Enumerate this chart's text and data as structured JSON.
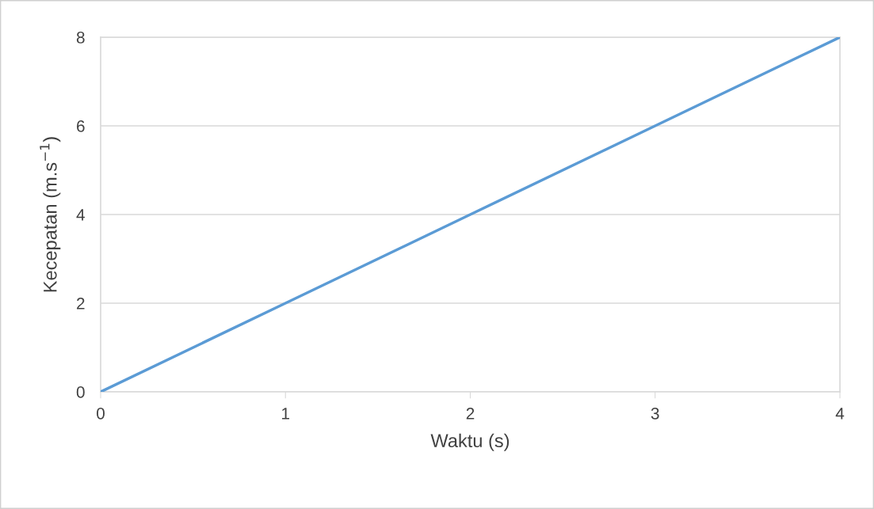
{
  "chart_data": {
    "type": "line",
    "xlabel": "Waktu (s)",
    "ylabel": "Kecepatan (m.s$^{−1}$)",
    "x": [
      0,
      1,
      2,
      3,
      4
    ],
    "series": [
      {
        "color": "#5b9bd5",
        "values": [
          0,
          2,
          4,
          6,
          8
        ]
      }
    ],
    "xlim": [
      0,
      4
    ],
    "xticks": [
      0,
      1,
      2,
      3,
      4
    ],
    "ylim": [
      0,
      8
    ],
    "yticks": [
      0,
      2,
      4,
      6,
      8
    ],
    "grid": "y",
    "marker": "none",
    "line_style": "solid"
  }
}
